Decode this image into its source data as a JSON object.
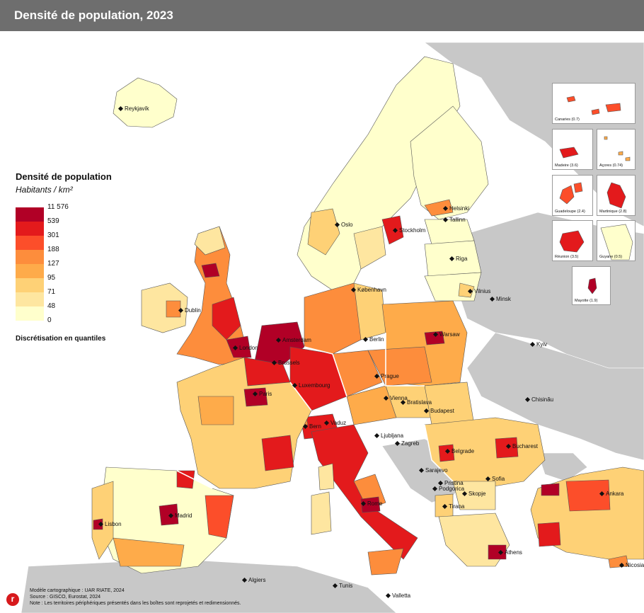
{
  "title": "Densité de population, 2023",
  "legend": {
    "title": "Densité de population",
    "unit": "Habitants / km²",
    "classes": [
      {
        "label": "11 576",
        "color": "#b10026"
      },
      {
        "label": "539",
        "color": "#e31a1c"
      },
      {
        "label": "301",
        "color": "#fc4e2a"
      },
      {
        "label": "188",
        "color": "#fd8d3c"
      },
      {
        "label": "127",
        "color": "#feab4a"
      },
      {
        "label": "95",
        "color": "#fed176"
      },
      {
        "label": "71",
        "color": "#fee6a0"
      },
      {
        "label": "48",
        "color": "#ffffcc"
      },
      {
        "label": "0",
        "color": "#ffffff"
      }
    ],
    "method": "Discrétisation en quantiles"
  },
  "cities": [
    "Reykjavík",
    "Oslo",
    "Stockholm",
    "Helsinki",
    "Tallinn",
    "Riga",
    "Vilnius",
    "Minsk",
    "København",
    "Dublin",
    "London",
    "Amsterdam",
    "Berlin",
    "Warsaw",
    "Brussels",
    "Luxembourg",
    "Prague",
    "Kyiv",
    "Paris",
    "Vienna",
    "Bratislava",
    "Chisinău",
    "Budapest",
    "Vaduz",
    "Bern",
    "Ljubljana",
    "Zagreb",
    "Bucharest",
    "Belgrade",
    "Sarajevo",
    "Pristina",
    "Sofia",
    "Podgorica",
    "Skopje",
    "Tirana",
    "Ankara",
    "Madrid",
    "Lisbon",
    "Rome",
    "Athens",
    "Nicosia",
    "Algiers",
    "Tunis",
    "Valletta"
  ],
  "insets": [
    {
      "label": "Canaries (0.7)"
    },
    {
      "label": "Madeire (3.6)"
    },
    {
      "label": "Açores (0.74)"
    },
    {
      "label": "Guadeloupe (2.4)"
    },
    {
      "label": "Martinique (2.8)"
    },
    {
      "label": "Réunion (3.5)"
    },
    {
      "label": "Guyane (0.5)"
    },
    {
      "label": "Mayotte (1.9)"
    }
  ],
  "footer": {
    "line1": "Modèle cartographique : UAR RIATE, 2024",
    "line2": "Source : GISCO, Eurostat, 2024",
    "line3": "Note : Les territoires périphériques présentés dans les boîtes sont reprojetés et redimensionnés."
  },
  "logo": "r",
  "colors": {
    "nodata": "#c8c8c8",
    "border": "#555555",
    "sea": "#ffffff"
  }
}
